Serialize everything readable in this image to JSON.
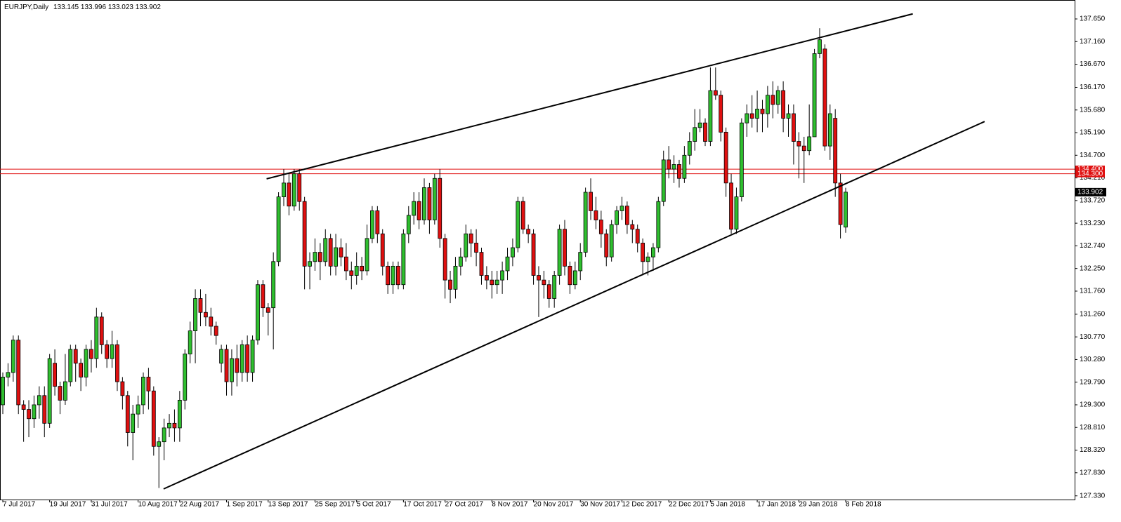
{
  "chart_data": {
    "type": "candlestick",
    "title": "EURJPY,Daily",
    "up_color": "#2fbf2f",
    "down_color": "#e01010",
    "line_color": "#000000",
    "hline_color": "#e01010",
    "ylim": [
      127.25,
      138.06
    ],
    "yticks": [
      {
        "value": 137.65,
        "label": "137.650"
      },
      {
        "value": 137.16,
        "label": "137.160"
      },
      {
        "value": 136.67,
        "label": "136.670"
      },
      {
        "value": 136.17,
        "label": "136.170"
      },
      {
        "value": 135.68,
        "label": "135.680"
      },
      {
        "value": 135.19,
        "label": "135.190"
      },
      {
        "value": 134.7,
        "label": "134.700"
      },
      {
        "value": 134.21,
        "label": "134.210"
      },
      {
        "value": 133.72,
        "label": "133.720"
      },
      {
        "value": 133.23,
        "label": "133.230"
      },
      {
        "value": 132.74,
        "label": "132.740"
      },
      {
        "value": 132.25,
        "label": "132.250"
      },
      {
        "value": 131.76,
        "label": "131.760"
      },
      {
        "value": 131.26,
        "label": "131.260"
      },
      {
        "value": 130.77,
        "label": "130.770"
      },
      {
        "value": 130.28,
        "label": "130.280"
      },
      {
        "value": 129.79,
        "label": "129.790"
      },
      {
        "value": 129.3,
        "label": "129.300"
      },
      {
        "value": 128.81,
        "label": "128.810"
      },
      {
        "value": 128.32,
        "label": "128.320"
      },
      {
        "value": 127.83,
        "label": "127.830"
      },
      {
        "value": 127.33,
        "label": "127.330"
      }
    ],
    "hlines": [
      {
        "value": 134.4,
        "label": "134.400"
      },
      {
        "value": 134.3,
        "label": "134.300"
      }
    ],
    "trendlines": [
      {
        "x": [
          50.7,
          174.9
        ],
        "y": [
          134.19,
          137.76
        ]
      },
      {
        "x": [
          30.9,
          188.7
        ],
        "y": [
          127.48,
          135.43
        ]
      }
    ],
    "categories": [
      "7 Jul 2017",
      null,
      null,
      null,
      null,
      null,
      null,
      null,
      null,
      "19 Jul 2017",
      null,
      null,
      null,
      null,
      null,
      null,
      null,
      "31 Jul 2017",
      null,
      null,
      null,
      null,
      null,
      null,
      null,
      null,
      "10 Aug 2017",
      null,
      null,
      null,
      null,
      null,
      null,
      null,
      "22 Aug 2017",
      null,
      null,
      null,
      null,
      null,
      null,
      null,
      null,
      "1 Sep 2017",
      null,
      null,
      null,
      null,
      null,
      null,
      null,
      "13 Sep 2017",
      null,
      null,
      null,
      null,
      null,
      null,
      null,
      null,
      "25 Sep 2017",
      null,
      null,
      null,
      null,
      null,
      null,
      null,
      "5 Oct 2017",
      null,
      null,
      null,
      null,
      null,
      null,
      null,
      null,
      "17 Oct 2017",
      null,
      null,
      null,
      null,
      null,
      null,
      null,
      "27 Oct 2017",
      null,
      null,
      null,
      null,
      null,
      null,
      null,
      null,
      "8 Nov 2017",
      null,
      null,
      null,
      null,
      null,
      null,
      null,
      "20 Nov 2017",
      null,
      null,
      null,
      null,
      null,
      null,
      null,
      null,
      "30 Nov 2017",
      null,
      null,
      null,
      null,
      null,
      null,
      null,
      "12 Dec 2017",
      null,
      null,
      null,
      null,
      null,
      null,
      null,
      null,
      "22 Dec 2017",
      null,
      null,
      null,
      null,
      null,
      null,
      null,
      "5 Jan 2018",
      null,
      null,
      null,
      null,
      null,
      null,
      null,
      null,
      "17 Jan 2018",
      null,
      null,
      null,
      null,
      null,
      null,
      null,
      "29 Jan 2018",
      null,
      null,
      null,
      null,
      null,
      null,
      null,
      null,
      "8 Feb 2018"
    ],
    "ohlc": [
      [
        129.3,
        130.0,
        129.1,
        129.9
      ],
      [
        129.9,
        130.2,
        129.7,
        130.0
      ],
      [
        130.0,
        130.8,
        129.8,
        130.7
      ],
      [
        130.7,
        130.8,
        129.1,
        129.3
      ],
      [
        129.3,
        129.4,
        128.5,
        129.2
      ],
      [
        129.2,
        129.4,
        128.6,
        129.0
      ],
      [
        129.0,
        129.5,
        128.8,
        129.3
      ],
      [
        129.3,
        129.7,
        129.0,
        129.5
      ],
      [
        129.5,
        129.7,
        128.6,
        128.9
      ],
      [
        128.9,
        130.4,
        128.8,
        130.3
      ],
      [
        130.2,
        130.5,
        129.5,
        129.7
      ],
      [
        129.7,
        129.8,
        129.1,
        129.4
      ],
      [
        129.4,
        130.4,
        129.3,
        129.8
      ],
      [
        129.8,
        130.6,
        129.7,
        130.5
      ],
      [
        130.5,
        130.6,
        129.8,
        130.2
      ],
      [
        130.2,
        130.3,
        129.6,
        129.9
      ],
      [
        129.9,
        130.6,
        129.7,
        130.5
      ],
      [
        130.5,
        130.7,
        130.0,
        130.3
      ],
      [
        130.3,
        131.4,
        130.1,
        131.2
      ],
      [
        131.2,
        131.3,
        130.4,
        130.6
      ],
      [
        130.6,
        130.7,
        130.1,
        130.3
      ],
      [
        130.3,
        130.9,
        130.1,
        130.6
      ],
      [
        130.6,
        130.7,
        129.6,
        129.8
      ],
      [
        129.8,
        129.9,
        129.2,
        129.5
      ],
      [
        129.5,
        129.6,
        128.4,
        128.7
      ],
      [
        128.7,
        129.3,
        128.1,
        129.1
      ],
      [
        129.1,
        129.5,
        128.8,
        129.3
      ],
      [
        129.3,
        130.0,
        129.1,
        129.9
      ],
      [
        129.9,
        130.1,
        129.2,
        129.6
      ],
      [
        129.6,
        129.7,
        128.2,
        128.4
      ],
      [
        128.4,
        128.6,
        127.5,
        128.5
      ],
      [
        128.5,
        129.0,
        128.1,
        128.8
      ],
      [
        128.8,
        129.1,
        128.6,
        128.9
      ],
      [
        128.9,
        129.2,
        128.5,
        128.8
      ],
      [
        128.8,
        129.6,
        128.5,
        129.4
      ],
      [
        129.4,
        130.5,
        129.2,
        130.4
      ],
      [
        130.4,
        131.1,
        130.2,
        130.9
      ],
      [
        130.9,
        131.8,
        130.2,
        131.6
      ],
      [
        131.6,
        131.8,
        131.0,
        131.3
      ],
      [
        131.3,
        131.7,
        131.0,
        131.2
      ],
      [
        131.2,
        131.4,
        130.8,
        131.0
      ],
      [
        131.0,
        131.1,
        130.6,
        130.8
      ],
      [
        130.2,
        130.6,
        130.0,
        130.5
      ],
      [
        130.5,
        130.6,
        129.5,
        129.8
      ],
      [
        129.8,
        130.5,
        129.5,
        130.3
      ],
      [
        130.3,
        130.6,
        129.7,
        130.0
      ],
      [
        130.0,
        130.7,
        129.8,
        130.6
      ],
      [
        130.6,
        130.8,
        129.8,
        130.0
      ],
      [
        130.0,
        130.8,
        129.8,
        130.7
      ],
      [
        130.7,
        132.0,
        130.6,
        131.9
      ],
      [
        131.9,
        132.0,
        131.2,
        131.4
      ],
      [
        131.4,
        131.5,
        130.8,
        131.3
      ],
      [
        131.4,
        132.6,
        130.5,
        132.4
      ],
      [
        132.4,
        133.9,
        132.3,
        133.8
      ],
      [
        133.8,
        134.4,
        133.6,
        134.1
      ],
      [
        134.1,
        134.3,
        133.4,
        133.6
      ],
      [
        133.6,
        134.4,
        133.5,
        134.3
      ],
      [
        134.3,
        134.4,
        133.5,
        133.7
      ],
      [
        133.7,
        133.8,
        131.8,
        132.3
      ],
      [
        132.3,
        132.6,
        131.8,
        132.4
      ],
      [
        132.4,
        132.9,
        132.2,
        132.6
      ],
      [
        132.6,
        132.8,
        132.0,
        132.4
      ],
      [
        132.4,
        133.1,
        132.3,
        132.9
      ],
      [
        132.9,
        133.0,
        132.1,
        132.3
      ],
      [
        132.3,
        133.0,
        132.1,
        132.7
      ],
      [
        132.7,
        132.9,
        132.3,
        132.5
      ],
      [
        132.5,
        132.8,
        132.0,
        132.2
      ],
      [
        132.2,
        132.4,
        131.8,
        132.1
      ],
      [
        132.1,
        132.6,
        131.9,
        132.3
      ],
      [
        132.3,
        132.5,
        132.0,
        132.2
      ],
      [
        132.2,
        133.2,
        132.1,
        132.9
      ],
      [
        132.9,
        133.6,
        132.8,
        133.5
      ],
      [
        133.5,
        133.6,
        132.8,
        133.0
      ],
      [
        133.0,
        133.1,
        132.1,
        132.3
      ],
      [
        132.3,
        132.4,
        131.7,
        131.9
      ],
      [
        131.9,
        132.4,
        131.7,
        132.3
      ],
      [
        132.3,
        132.4,
        131.8,
        131.9
      ],
      [
        131.9,
        133.1,
        131.8,
        133.0
      ],
      [
        133.0,
        133.6,
        132.8,
        133.4
      ],
      [
        133.4,
        133.9,
        133.2,
        133.7
      ],
      [
        133.7,
        133.9,
        133.1,
        133.3
      ],
      [
        133.3,
        134.2,
        133.2,
        134.0
      ],
      [
        134.0,
        134.1,
        133.0,
        133.3
      ],
      [
        133.3,
        134.3,
        133.2,
        134.2
      ],
      [
        134.2,
        134.4,
        132.7,
        132.9
      ],
      [
        132.9,
        133.0,
        131.6,
        132.0
      ],
      [
        132.0,
        132.2,
        131.5,
        131.8
      ],
      [
        131.8,
        132.5,
        131.6,
        132.3
      ],
      [
        132.3,
        132.7,
        132.1,
        132.5
      ],
      [
        132.5,
        133.2,
        132.4,
        133.0
      ],
      [
        133.0,
        133.1,
        132.5,
        132.8
      ],
      [
        132.8,
        133.1,
        132.3,
        132.6
      ],
      [
        132.6,
        132.7,
        131.9,
        132.1
      ],
      [
        132.1,
        132.3,
        131.8,
        132.0
      ],
      [
        132.0,
        132.2,
        131.6,
        131.9
      ],
      [
        131.9,
        132.2,
        131.7,
        132.0
      ],
      [
        132.0,
        132.4,
        131.7,
        132.2
      ],
      [
        132.2,
        132.7,
        132.0,
        132.5
      ],
      [
        132.5,
        132.9,
        132.3,
        132.7
      ],
      [
        132.7,
        133.8,
        132.6,
        133.7
      ],
      [
        133.7,
        133.8,
        133.0,
        133.1
      ],
      [
        133.1,
        133.2,
        132.8,
        133.0
      ],
      [
        133.0,
        133.1,
        131.9,
        132.1
      ],
      [
        132.1,
        132.3,
        131.2,
        132.0
      ],
      [
        132.0,
        132.2,
        131.6,
        131.9
      ],
      [
        131.9,
        132.0,
        131.4,
        131.6
      ],
      [
        131.6,
        132.2,
        131.4,
        132.1
      ],
      [
        132.1,
        133.2,
        131.9,
        133.1
      ],
      [
        133.1,
        133.3,
        132.1,
        132.3
      ],
      [
        132.3,
        132.4,
        131.7,
        131.9
      ],
      [
        131.9,
        132.4,
        131.8,
        132.2
      ],
      [
        132.2,
        132.8,
        132.0,
        132.6
      ],
      [
        132.6,
        134.0,
        132.5,
        133.9
      ],
      [
        133.9,
        134.2,
        133.3,
        133.5
      ],
      [
        133.5,
        133.8,
        133.1,
        133.3
      ],
      [
        133.3,
        133.5,
        132.7,
        133.0
      ],
      [
        133.0,
        133.1,
        132.3,
        132.5
      ],
      [
        132.5,
        133.3,
        132.4,
        133.2
      ],
      [
        133.2,
        133.6,
        133.0,
        133.5
      ],
      [
        133.5,
        133.8,
        133.3,
        133.6
      ],
      [
        133.6,
        133.7,
        133.0,
        133.2
      ],
      [
        133.2,
        133.3,
        132.8,
        133.1
      ],
      [
        133.1,
        133.2,
        132.6,
        132.8
      ],
      [
        132.8,
        132.9,
        132.1,
        132.4
      ],
      [
        132.4,
        132.6,
        132.1,
        132.5
      ],
      [
        132.5,
        132.8,
        132.2,
        132.7
      ],
      [
        132.7,
        133.8,
        132.6,
        133.7
      ],
      [
        133.7,
        134.8,
        133.6,
        134.6
      ],
      [
        134.6,
        134.9,
        134.2,
        134.4
      ],
      [
        134.4,
        134.7,
        134.1,
        134.5
      ],
      [
        134.5,
        134.6,
        134.0,
        134.2
      ],
      [
        134.2,
        134.9,
        134.1,
        134.7
      ],
      [
        134.7,
        135.2,
        134.5,
        135.0
      ],
      [
        135.0,
        135.7,
        134.8,
        135.3
      ],
      [
        135.3,
        135.7,
        135.2,
        135.4
      ],
      [
        135.4,
        135.5,
        134.9,
        135.0
      ],
      [
        135.0,
        136.6,
        134.9,
        136.1
      ],
      [
        136.1,
        136.6,
        135.9,
        136.0
      ],
      [
        136.0,
        136.1,
        135.0,
        135.2
      ],
      [
        135.2,
        135.3,
        133.8,
        134.1
      ],
      [
        134.1,
        134.3,
        133.0,
        133.1
      ],
      [
        133.1,
        134.0,
        133.0,
        133.8
      ],
      [
        133.8,
        135.5,
        133.7,
        135.4
      ],
      [
        135.4,
        135.8,
        135.1,
        135.6
      ],
      [
        135.6,
        136.0,
        135.3,
        135.5
      ],
      [
        135.5,
        136.1,
        135.2,
        135.7
      ],
      [
        135.7,
        135.9,
        135.2,
        135.6
      ],
      [
        135.6,
        136.2,
        135.3,
        136.0
      ],
      [
        136.0,
        136.3,
        135.5,
        135.8
      ],
      [
        135.8,
        136.2,
        135.6,
        136.1
      ],
      [
        136.1,
        136.3,
        135.2,
        135.5
      ],
      [
        135.5,
        135.8,
        135.1,
        135.6
      ],
      [
        135.6,
        135.8,
        134.5,
        135.0
      ],
      [
        135.0,
        135.2,
        134.2,
        134.9
      ],
      [
        134.9,
        135.1,
        134.1,
        134.8
      ],
      [
        134.8,
        135.8,
        134.7,
        135.1
      ],
      [
        135.1,
        137.0,
        135.1,
        136.9
      ],
      [
        136.9,
        137.45,
        136.8,
        137.2
      ],
      [
        137.0,
        137.1,
        134.8,
        134.9
      ],
      [
        134.9,
        135.8,
        134.6,
        135.6
      ],
      [
        135.5,
        135.7,
        133.8,
        134.1
      ],
      [
        134.1,
        134.3,
        132.9,
        133.2
      ],
      [
        133.145,
        133.996,
        133.023,
        133.902
      ]
    ]
  }
}
